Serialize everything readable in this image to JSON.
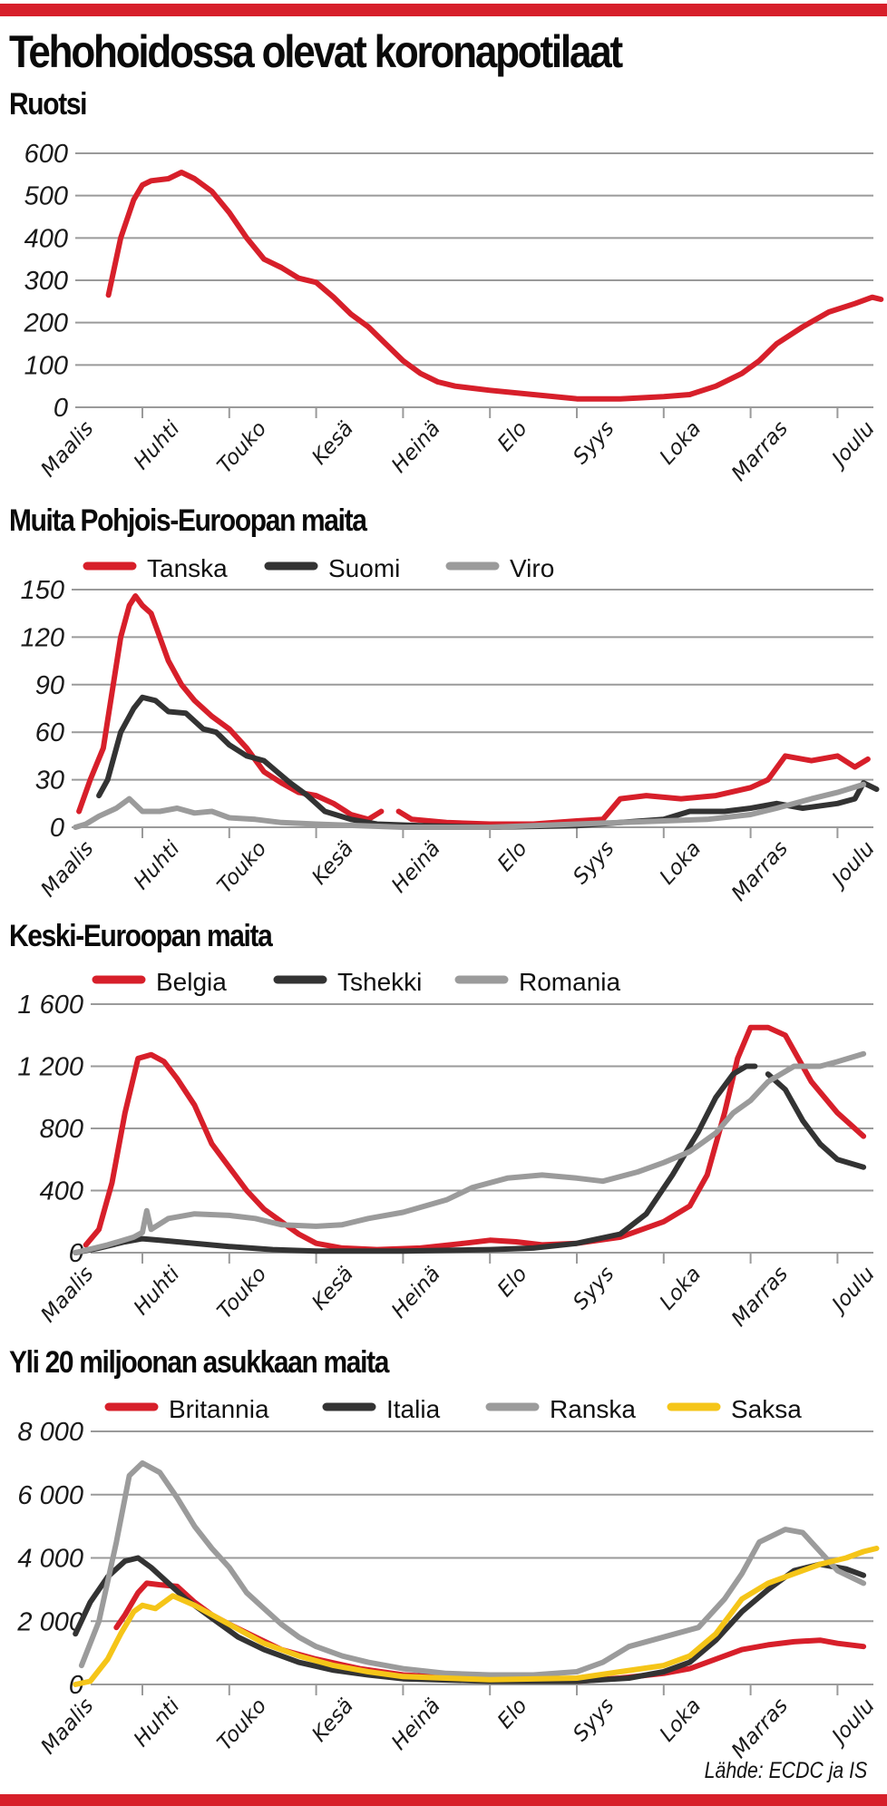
{
  "title": "Tehohoidossa olevat koronapotilaat",
  "source": "Lähde: ECDC ja IS",
  "colors": {
    "frame": "#d71f2a",
    "grid": "#9a9a9a",
    "red": "#d71f2a",
    "black": "#333333",
    "gray": "#9b9b9b",
    "yellow": "#f5c518"
  },
  "months": [
    "Maalis",
    "Huhti",
    "Touko",
    "Kesä",
    "Heinä",
    "Elo",
    "Syys",
    "Loka",
    "Marras",
    "Joulu"
  ],
  "chart_data": [
    {
      "type": "line",
      "title": "Ruotsi",
      "xlabel": "",
      "ylabel": "",
      "x_unit": "months since 1 March (0 = Maalis, 1 = Huhti, ...)",
      "xlim": [
        0.23,
        9.6
      ],
      "ylim": [
        0,
        600
      ],
      "yticks": [
        0,
        100,
        200,
        300,
        400,
        500,
        600
      ],
      "ytick_labels": [
        "0",
        "100",
        "200",
        "300",
        "400",
        "500",
        "600"
      ],
      "grid": true,
      "legend": null,
      "series": [
        {
          "name": "Ruotsi",
          "color": "red",
          "x": [
            0.61,
            0.75,
            0.9,
            1.0,
            1.1,
            1.3,
            1.45,
            1.6,
            1.8,
            2.0,
            2.2,
            2.4,
            2.6,
            2.8,
            3.0,
            3.2,
            3.4,
            3.6,
            3.8,
            4.0,
            4.2,
            4.4,
            4.6,
            5.0,
            5.5,
            6.0,
            6.5,
            7.0,
            7.3,
            7.6,
            7.9,
            8.1,
            8.3,
            8.6,
            8.9,
            9.2,
            9.4,
            9.5
          ],
          "y": [
            265,
            400,
            490,
            525,
            535,
            540,
            555,
            540,
            510,
            460,
            400,
            350,
            330,
            305,
            295,
            260,
            220,
            190,
            150,
            110,
            80,
            60,
            50,
            40,
            30,
            20,
            20,
            25,
            30,
            50,
            80,
            110,
            150,
            190,
            225,
            245,
            260,
            255
          ]
        }
      ]
    },
    {
      "type": "line",
      "title": "Muita Pohjois-Euroopan maita",
      "xlabel": "",
      "ylabel": "",
      "x_unit": "months since 1 March",
      "xlim": [
        0.23,
        9.6
      ],
      "ylim": [
        0,
        150
      ],
      "yticks": [
        0,
        30,
        60,
        90,
        120,
        150
      ],
      "ytick_labels": [
        "0",
        "30",
        "60",
        "90",
        "120",
        "150"
      ],
      "grid": true,
      "legend": "top-left",
      "series": [
        {
          "name": "Tanska",
          "color": "red",
          "segments": [
            {
              "x": [
                0.27,
                0.4,
                0.55,
                0.65,
                0.75,
                0.85,
                0.92,
                1.0,
                1.1,
                1.2,
                1.3,
                1.45,
                1.6,
                1.8,
                2.0,
                2.2,
                2.4,
                2.6,
                2.8,
                3.0,
                3.2,
                3.4,
                3.6,
                3.75
              ],
              "y": [
                10,
                30,
                50,
                85,
                120,
                140,
                146,
                140,
                135,
                120,
                105,
                90,
                80,
                70,
                62,
                50,
                35,
                28,
                22,
                20,
                15,
                8,
                5,
                10
              ]
            },
            {
              "x": [
                3.95,
                4.1,
                4.5,
                5.0,
                5.5,
                6.0,
                6.3,
                6.5,
                6.8,
                7.2,
                7.6,
                8.0,
                8.2,
                8.4,
                8.7,
                9.0,
                9.2,
                9.35
              ],
              "y": [
                10,
                5,
                3,
                2,
                2,
                4,
                5,
                18,
                20,
                18,
                20,
                25,
                30,
                45,
                42,
                45,
                38,
                43
              ]
            }
          ]
        },
        {
          "name": "Suomi",
          "color": "black",
          "segments": [
            {
              "x": [
                0.5,
                0.6,
                0.75,
                0.9,
                1.0,
                1.15,
                1.3,
                1.5,
                1.7,
                1.85,
                2.0,
                2.2,
                2.4,
                2.55,
                2.7,
                2.9,
                3.1,
                3.4,
                3.7,
                4.2,
                5.0,
                6.0,
                6.5,
                7.0,
                7.3,
                7.7,
                8.0,
                8.3,
                8.6,
                9.0,
                9.2,
                9.3,
                9.45
              ],
              "y": [
                20,
                30,
                60,
                75,
                82,
                80,
                73,
                72,
                62,
                60,
                52,
                45,
                42,
                35,
                28,
                20,
                10,
                5,
                2,
                1,
                0,
                1,
                3,
                5,
                10,
                10,
                12,
                15,
                12,
                15,
                18,
                28,
                24
              ]
            }
          ]
        },
        {
          "name": "Viro",
          "color": "gray",
          "segments": [
            {
              "x": [
                0.23,
                0.35,
                0.5,
                0.7,
                0.85,
                1.0,
                1.2,
                1.4,
                1.6,
                1.8,
                2.0,
                2.3,
                2.6,
                3.0,
                3.5,
                4.0,
                5.0,
                6.0,
                6.5,
                7.0,
                7.5,
                8.0,
                8.3,
                8.7,
                9.0,
                9.3
              ],
              "y": [
                0,
                2,
                7,
                12,
                18,
                10,
                10,
                12,
                9,
                10,
                6,
                5,
                3,
                2,
                1,
                0,
                0,
                2,
                3,
                4,
                5,
                8,
                12,
                18,
                22,
                27
              ]
            }
          ]
        }
      ]
    },
    {
      "type": "line",
      "title": "Keski-Euroopan maita",
      "xlabel": "",
      "ylabel": "",
      "x_unit": "months since 1 March",
      "xlim": [
        0.23,
        9.6
      ],
      "ylim": [
        0,
        1600
      ],
      "yticks": [
        0,
        400,
        800,
        1200,
        1600
      ],
      "ytick_labels": [
        "0",
        "400",
        "800",
        "1 200",
        "1 600"
      ],
      "grid": true,
      "legend": "top-left",
      "series": [
        {
          "name": "Belgia",
          "color": "red",
          "segments": [
            {
              "x": [
                0.35,
                0.5,
                0.65,
                0.8,
                0.95,
                1.1,
                1.25,
                1.4,
                1.6,
                1.8,
                2.0,
                2.2,
                2.4,
                2.6,
                2.8,
                3.0,
                3.3,
                3.7,
                4.2,
                4.7,
                5.0,
                5.3,
                5.6,
                6.0,
                6.5,
                7.0,
                7.3,
                7.5,
                7.7,
                7.85,
                8.0,
                8.2,
                8.4,
                8.7,
                9.0,
                9.3
              ],
              "y": [
                50,
                150,
                450,
                900,
                1250,
                1275,
                1230,
                1120,
                950,
                700,
                550,
                400,
                280,
                200,
                120,
                60,
                30,
                20,
                30,
                60,
                80,
                70,
                50,
                60,
                100,
                200,
                300,
                500,
                900,
                1250,
                1450,
                1450,
                1400,
                1100,
                900,
                750
              ]
            }
          ]
        },
        {
          "name": "Tshekki",
          "color": "black",
          "segments": [
            {
              "x": [
                0.23,
                0.5,
                0.8,
                1.0,
                1.2,
                1.5,
                2.0,
                2.5,
                3.0,
                4.0,
                5.0,
                5.5,
                6.0,
                6.5,
                6.8,
                7.1,
                7.4,
                7.6,
                7.8,
                7.95,
                8.05
              ],
              "y": [
                0,
                30,
                70,
                90,
                80,
                65,
                40,
                20,
                10,
                10,
                20,
                30,
                60,
                120,
                250,
                500,
                780,
                1000,
                1150,
                1200,
                1200
              ]
            },
            {
              "x": [
                8.2,
                8.4,
                8.6,
                8.8,
                9.0,
                9.3
              ],
              "y": [
                1150,
                1050,
                850,
                700,
                600,
                550
              ]
            }
          ]
        },
        {
          "name": "Romania",
          "color": "gray",
          "segments": [
            {
              "x": [
                0.23,
                0.6,
                0.9,
                1.0,
                1.05,
                1.1,
                1.3,
                1.6,
                2.0,
                2.3,
                2.6,
                3.0,
                3.3,
                3.6,
                4.0,
                4.5,
                4.8,
                5.2,
                5.6,
                6.0,
                6.3,
                6.7,
                7.0,
                7.3,
                7.6,
                7.8,
                8.0,
                8.2,
                8.5,
                8.8,
                9.0,
                9.3
              ],
              "y": [
                0,
                50,
                100,
                130,
                270,
                150,
                220,
                250,
                240,
                220,
                180,
                170,
                180,
                220,
                260,
                340,
                420,
                480,
                500,
                480,
                460,
                520,
                580,
                650,
                770,
                900,
                980,
                1100,
                1200,
                1200,
                1230,
                1280
              ]
            }
          ]
        }
      ]
    },
    {
      "type": "line",
      "title": "Yli 20 miljoonan asukkaan maita",
      "xlabel": "",
      "ylabel": "",
      "x_unit": "months since 1 March",
      "xlim": [
        0.23,
        9.6
      ],
      "ylim": [
        0,
        8000
      ],
      "yticks": [
        0,
        2000,
        4000,
        6000,
        8000
      ],
      "ytick_labels": [
        "0",
        "2 000",
        "4 000",
        "6 000",
        "8 000"
      ],
      "grid": true,
      "legend": "top-left",
      "series": [
        {
          "name": "Britannia",
          "color": "red",
          "segments": [
            {
              "x": [
                0.7,
                0.8,
                0.95,
                1.05,
                1.2,
                1.4,
                1.6,
                1.8,
                2.0,
                2.3,
                2.6,
                3.0,
                3.5,
                4.0,
                5.0,
                6.0,
                6.5,
                7.0,
                7.3,
                7.6,
                7.9,
                8.2,
                8.5,
                8.8,
                9.0,
                9.3
              ],
              "y": [
                1800,
                2200,
                2900,
                3200,
                3150,
                3100,
                2600,
                2200,
                1900,
                1500,
                1100,
                800,
                500,
                300,
                150,
                100,
                200,
                350,
                500,
                800,
                1100,
                1250,
                1350,
                1400,
                1300,
                1200
              ]
            }
          ]
        },
        {
          "name": "Italia",
          "color": "black",
          "segments": [
            {
              "x": [
                0.23,
                0.4,
                0.6,
                0.8,
                0.95,
                1.1,
                1.3,
                1.5,
                1.8,
                2.1,
                2.4,
                2.8,
                3.2,
                3.6,
                4.0,
                5.0,
                6.0,
                6.6,
                7.0,
                7.3,
                7.6,
                7.9,
                8.2,
                8.5,
                8.8,
                9.1,
                9.3
              ],
              "y": [
                1600,
                2600,
                3400,
                3900,
                4000,
                3700,
                3200,
                2700,
                2100,
                1500,
                1100,
                700,
                450,
                300,
                180,
                100,
                100,
                200,
                400,
                700,
                1400,
                2300,
                3000,
                3600,
                3800,
                3650,
                3450
              ]
            }
          ]
        },
        {
          "name": "Ranska",
          "color": "gray",
          "segments": [
            {
              "x": [
                0.3,
                0.5,
                0.7,
                0.85,
                1.0,
                1.2,
                1.4,
                1.6,
                1.8,
                2.0,
                2.2,
                2.4,
                2.6,
                2.8,
                3.0,
                3.3,
                3.6,
                4.0,
                4.5,
                5.0,
                5.5,
                6.0,
                6.3,
                6.6,
                7.0,
                7.4,
                7.7,
                7.9,
                8.1,
                8.4,
                8.6,
                8.8,
                9.0,
                9.3
              ],
              "y": [
                600,
                2000,
                4500,
                6600,
                7000,
                6700,
                5900,
                5000,
                4300,
                3700,
                2900,
                2400,
                1900,
                1500,
                1200,
                900,
                700,
                500,
                350,
                300,
                300,
                400,
                700,
                1200,
                1500,
                1800,
                2700,
                3500,
                4500,
                4900,
                4800,
                4200,
                3600,
                3200
              ]
            }
          ]
        },
        {
          "name": "Saksa",
          "color": "yellow",
          "segments": [
            {
              "x": [
                0.23,
                0.4,
                0.6,
                0.75,
                0.9,
                1.0,
                1.15,
                1.35,
                1.6,
                2.0,
                2.4,
                2.8,
                3.2,
                3.6,
                4.0,
                5.0,
                6.0,
                6.5,
                7.0,
                7.3,
                7.6,
                7.9,
                8.2,
                8.5,
                8.8,
                9.1,
                9.3,
                9.45
              ],
              "y": [
                0,
                100,
                800,
                1600,
                2300,
                2500,
                2400,
                2800,
                2500,
                1900,
                1300,
                900,
                600,
                400,
                250,
                150,
                200,
                400,
                600,
                900,
                1600,
                2700,
                3200,
                3500,
                3800,
                4000,
                4200,
                4300
              ]
            }
          ]
        }
      ]
    }
  ]
}
